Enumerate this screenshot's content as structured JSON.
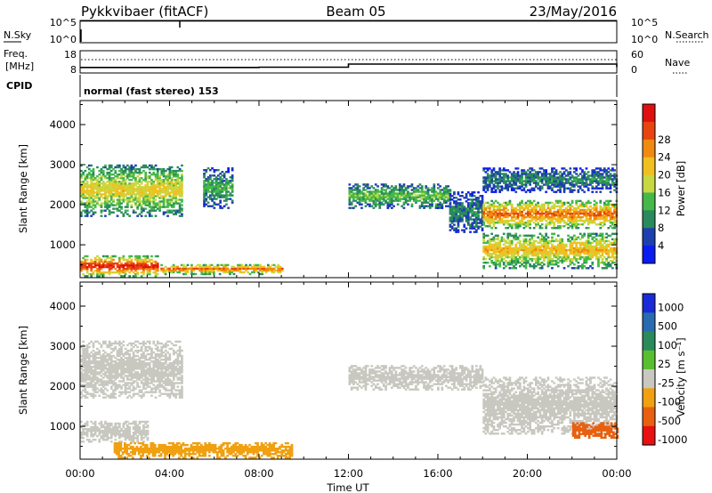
{
  "header": {
    "radar": "Pykkvibaer (fitACF)",
    "beam": "Beam 05",
    "date": "23/May/2016"
  },
  "top_panels": {
    "nsky_label": "N.Sky",
    "nsky_ticks": [
      "10^5",
      "10^0"
    ],
    "nsearch_label": "N.Search",
    "nsearch_ticks": [
      "10^5",
      "10^0"
    ],
    "freq_label_1": "Freq.",
    "freq_label_2": "[MHz]",
    "freq_ticks": [
      "18",
      "8"
    ],
    "nave_label": "Nave",
    "nave_ticks": [
      "60",
      "0"
    ],
    "cpid_label": "CPID",
    "cpid_value": "normal (fast stereo) 153"
  },
  "time_axis": {
    "ticks": [
      "00:00",
      "04:00",
      "08:00",
      "12:00",
      "16:00",
      "20:00",
      "00:00"
    ],
    "label": "Time UT"
  },
  "power_colorbar": {
    "label": "Power [dB]",
    "ticks": [
      "4",
      "8",
      "12",
      "16",
      "20",
      "24",
      "28"
    ],
    "colors": [
      "#0a1cf0",
      "#1e3fae",
      "#2a8a5c",
      "#45b84a",
      "#c8d840",
      "#f0c020",
      "#f08a10",
      "#e84410",
      "#e01010"
    ]
  },
  "velocity_colorbar": {
    "label": "Velocity [m s⁻¹]",
    "ticks": [
      "1000",
      "500",
      "100",
      "25",
      "-25",
      "-100",
      "-500",
      "-1000"
    ],
    "colors": [
      "#1a2ad8",
      "#2a6ab0",
      "#2a8a5c",
      "#58c030",
      "#c8c8c0",
      "#f0a010",
      "#e86010",
      "#e81010"
    ]
  },
  "chart_data": [
    {
      "type": "line",
      "title": "N.Sky / N.Search",
      "x": [
        "00:00",
        "04:00",
        "08:00",
        "12:00",
        "16:00",
        "20:00",
        "00:00"
      ],
      "series": [
        {
          "name": "N.Sky",
          "values": [
            80000,
            85000,
            80000,
            80000,
            78000,
            80000,
            82000
          ]
        }
      ]
    },
    {
      "type": "line",
      "title": "Freq. [MHz] / Nave",
      "x": [
        "00:00",
        "04:00",
        "08:00",
        "12:00",
        "16:00",
        "20:00",
        "00:00"
      ],
      "series": [
        {
          "name": "Freq. [MHz]",
          "values": [
            10.5,
            10.5,
            10.6,
            12.0,
            12.0,
            12.0,
            10.6
          ]
        },
        {
          "name": "Nave",
          "values": [
            32,
            32,
            32,
            32,
            32,
            32,
            32
          ]
        }
      ]
    },
    {
      "type": "heatmap",
      "title": "Power [dB]",
      "ylabel": "Slant Range [km]",
      "xlabel": "Time UT",
      "ylim": [
        180,
        4600
      ],
      "yticks": [
        "1000",
        "2000",
        "3000",
        "4000"
      ],
      "xrange_hours": [
        0,
        24
      ],
      "regions": [
        {
          "t": [
            0.0,
            3.5
          ],
          "r": [
            200,
            700
          ],
          "dB": 26
        },
        {
          "t": [
            3.5,
            9.0
          ],
          "r": [
            250,
            500
          ],
          "dB": 22
        },
        {
          "t": [
            0.0,
            4.5
          ],
          "r": [
            1700,
            3000
          ],
          "dB": 16
        },
        {
          "t": [
            5.5,
            6.8
          ],
          "r": [
            1900,
            2900
          ],
          "dB": 10
        },
        {
          "t": [
            12.0,
            16.5
          ],
          "r": [
            1900,
            2500
          ],
          "dB": 12
        },
        {
          "t": [
            16.5,
            18.0
          ],
          "r": [
            1300,
            2300
          ],
          "dB": 8
        },
        {
          "t": [
            18.0,
            24.0
          ],
          "r": [
            1400,
            2100
          ],
          "dB": 22
        },
        {
          "t": [
            18.0,
            24.0
          ],
          "r": [
            400,
            1300
          ],
          "dB": 18
        },
        {
          "t": [
            18.0,
            24.0
          ],
          "r": [
            2300,
            2900
          ],
          "dB": 8
        }
      ]
    },
    {
      "type": "heatmap",
      "title": "Velocity [m s⁻¹]",
      "ylabel": "Slant Range [km]",
      "xlabel": "Time UT",
      "ylim": [
        180,
        4600
      ],
      "yticks": [
        "1000",
        "2000",
        "3000",
        "4000"
      ],
      "xrange_hours": [
        0,
        24
      ],
      "regions": [
        {
          "t": [
            0.0,
            4.5
          ],
          "r": [
            1700,
            3100
          ],
          "v": 0
        },
        {
          "t": [
            0.0,
            3.0
          ],
          "r": [
            600,
            1100
          ],
          "v": 0
        },
        {
          "t": [
            1.5,
            9.5
          ],
          "r": [
            200,
            600
          ],
          "v": -60
        },
        {
          "t": [
            12.0,
            18.0
          ],
          "r": [
            1900,
            2500
          ],
          "v": 0
        },
        {
          "t": [
            18.0,
            24.0
          ],
          "r": [
            800,
            2200
          ],
          "v": 0
        },
        {
          "t": [
            22.0,
            24.0
          ],
          "r": [
            700,
            1100
          ],
          "v": -300
        }
      ]
    }
  ]
}
